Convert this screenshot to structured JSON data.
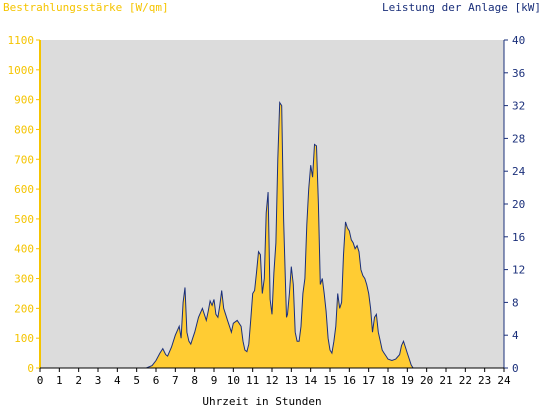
{
  "chart_data": {
    "type": "area",
    "ylabel_left": "Bestrahlungsstärke [W/qm]",
    "ylabel_right": "Leistung der Anlage [kW]",
    "xlabel": "Uhrzeit in Stunden",
    "xlim": [
      0,
      24
    ],
    "ylim_left": [
      0,
      1100
    ],
    "ylim_right": [
      0,
      40
    ],
    "x_ticks": [
      0,
      1,
      2,
      3,
      4,
      5,
      6,
      7,
      8,
      9,
      10,
      11,
      12,
      13,
      14,
      15,
      16,
      17,
      18,
      19,
      20,
      21,
      22,
      23,
      24
    ],
    "y_ticks_left": [
      0,
      100,
      200,
      300,
      400,
      500,
      600,
      700,
      800,
      900,
      1000,
      1100
    ],
    "y_ticks_right": [
      0,
      4,
      8,
      12,
      16,
      20,
      24,
      28,
      32,
      36,
      40
    ],
    "grid": false,
    "colors": {
      "fill": "#ffcc33",
      "line": "#1a2f7a",
      "plot_bg": "#dcdcdc",
      "left_axis": "#f5c400",
      "right_axis": "#1a2f7a"
    },
    "series": [
      {
        "x": [
          0,
          5.5,
          5.8,
          6.0,
          6.2,
          6.35,
          6.5,
          6.6,
          6.8,
          7.0,
          7.2,
          7.3,
          7.4,
          7.5,
          7.6,
          7.7,
          7.8,
          7.9,
          8.0,
          8.2,
          8.4,
          8.6,
          8.7,
          8.8,
          8.9,
          9.0,
          9.1,
          9.2,
          9.3,
          9.4,
          9.5,
          9.6,
          9.7,
          9.8,
          9.9,
          10.0,
          10.2,
          10.4,
          10.5,
          10.6,
          10.7,
          10.8,
          10.9,
          11.0,
          11.1,
          11.2,
          11.3,
          11.4,
          11.5,
          11.6,
          11.7,
          11.8,
          11.9,
          12.0,
          12.1,
          12.2,
          12.3,
          12.4,
          12.5,
          12.6,
          12.7,
          12.75,
          12.8,
          12.9,
          13.0,
          13.1,
          13.2,
          13.3,
          13.4,
          13.5,
          13.6,
          13.7,
          13.8,
          13.9,
          14.0,
          14.1,
          14.2,
          14.3,
          14.4,
          14.5,
          14.6,
          14.7,
          14.8,
          14.9,
          15.0,
          15.1,
          15.2,
          15.3,
          15.4,
          15.5,
          15.6,
          15.7,
          15.8,
          15.9,
          16.0,
          16.1,
          16.2,
          16.3,
          16.4,
          16.5,
          16.6,
          16.7,
          16.8,
          16.9,
          17.0,
          17.1,
          17.2,
          17.3,
          17.4,
          17.5,
          17.6,
          17.7,
          17.8,
          17.9,
          18.0,
          18.2,
          18.4,
          18.6,
          18.7,
          18.8,
          18.9,
          19.0,
          19.1,
          19.2,
          19.3,
          19.5,
          24
        ],
        "y": [
          0,
          0,
          8,
          25,
          50,
          65,
          45,
          40,
          70,
          110,
          140,
          100,
          220,
          270,
          120,
          90,
          80,
          100,
          120,
          170,
          200,
          160,
          190,
          225,
          210,
          230,
          180,
          170,
          210,
          260,
          200,
          180,
          160,
          140,
          120,
          150,
          160,
          140,
          90,
          60,
          55,
          80,
          160,
          250,
          260,
          320,
          390,
          380,
          250,
          300,
          520,
          590,
          230,
          180,
          320,
          420,
          700,
          890,
          880,
          500,
          280,
          170,
          180,
          250,
          340,
          280,
          120,
          90,
          90,
          140,
          250,
          300,
          480,
          600,
          680,
          640,
          750,
          745,
          550,
          280,
          300,
          250,
          190,
          100,
          60,
          50,
          90,
          140,
          250,
          200,
          220,
          380,
          490,
          470,
          460,
          430,
          420,
          400,
          410,
          390,
          330,
          310,
          300,
          280,
          250,
          200,
          120,
          170,
          180,
          120,
          90,
          60,
          50,
          40,
          30,
          25,
          30,
          45,
          75,
          90,
          70,
          50,
          30,
          10,
          0,
          0,
          0
        ]
      }
    ]
  }
}
